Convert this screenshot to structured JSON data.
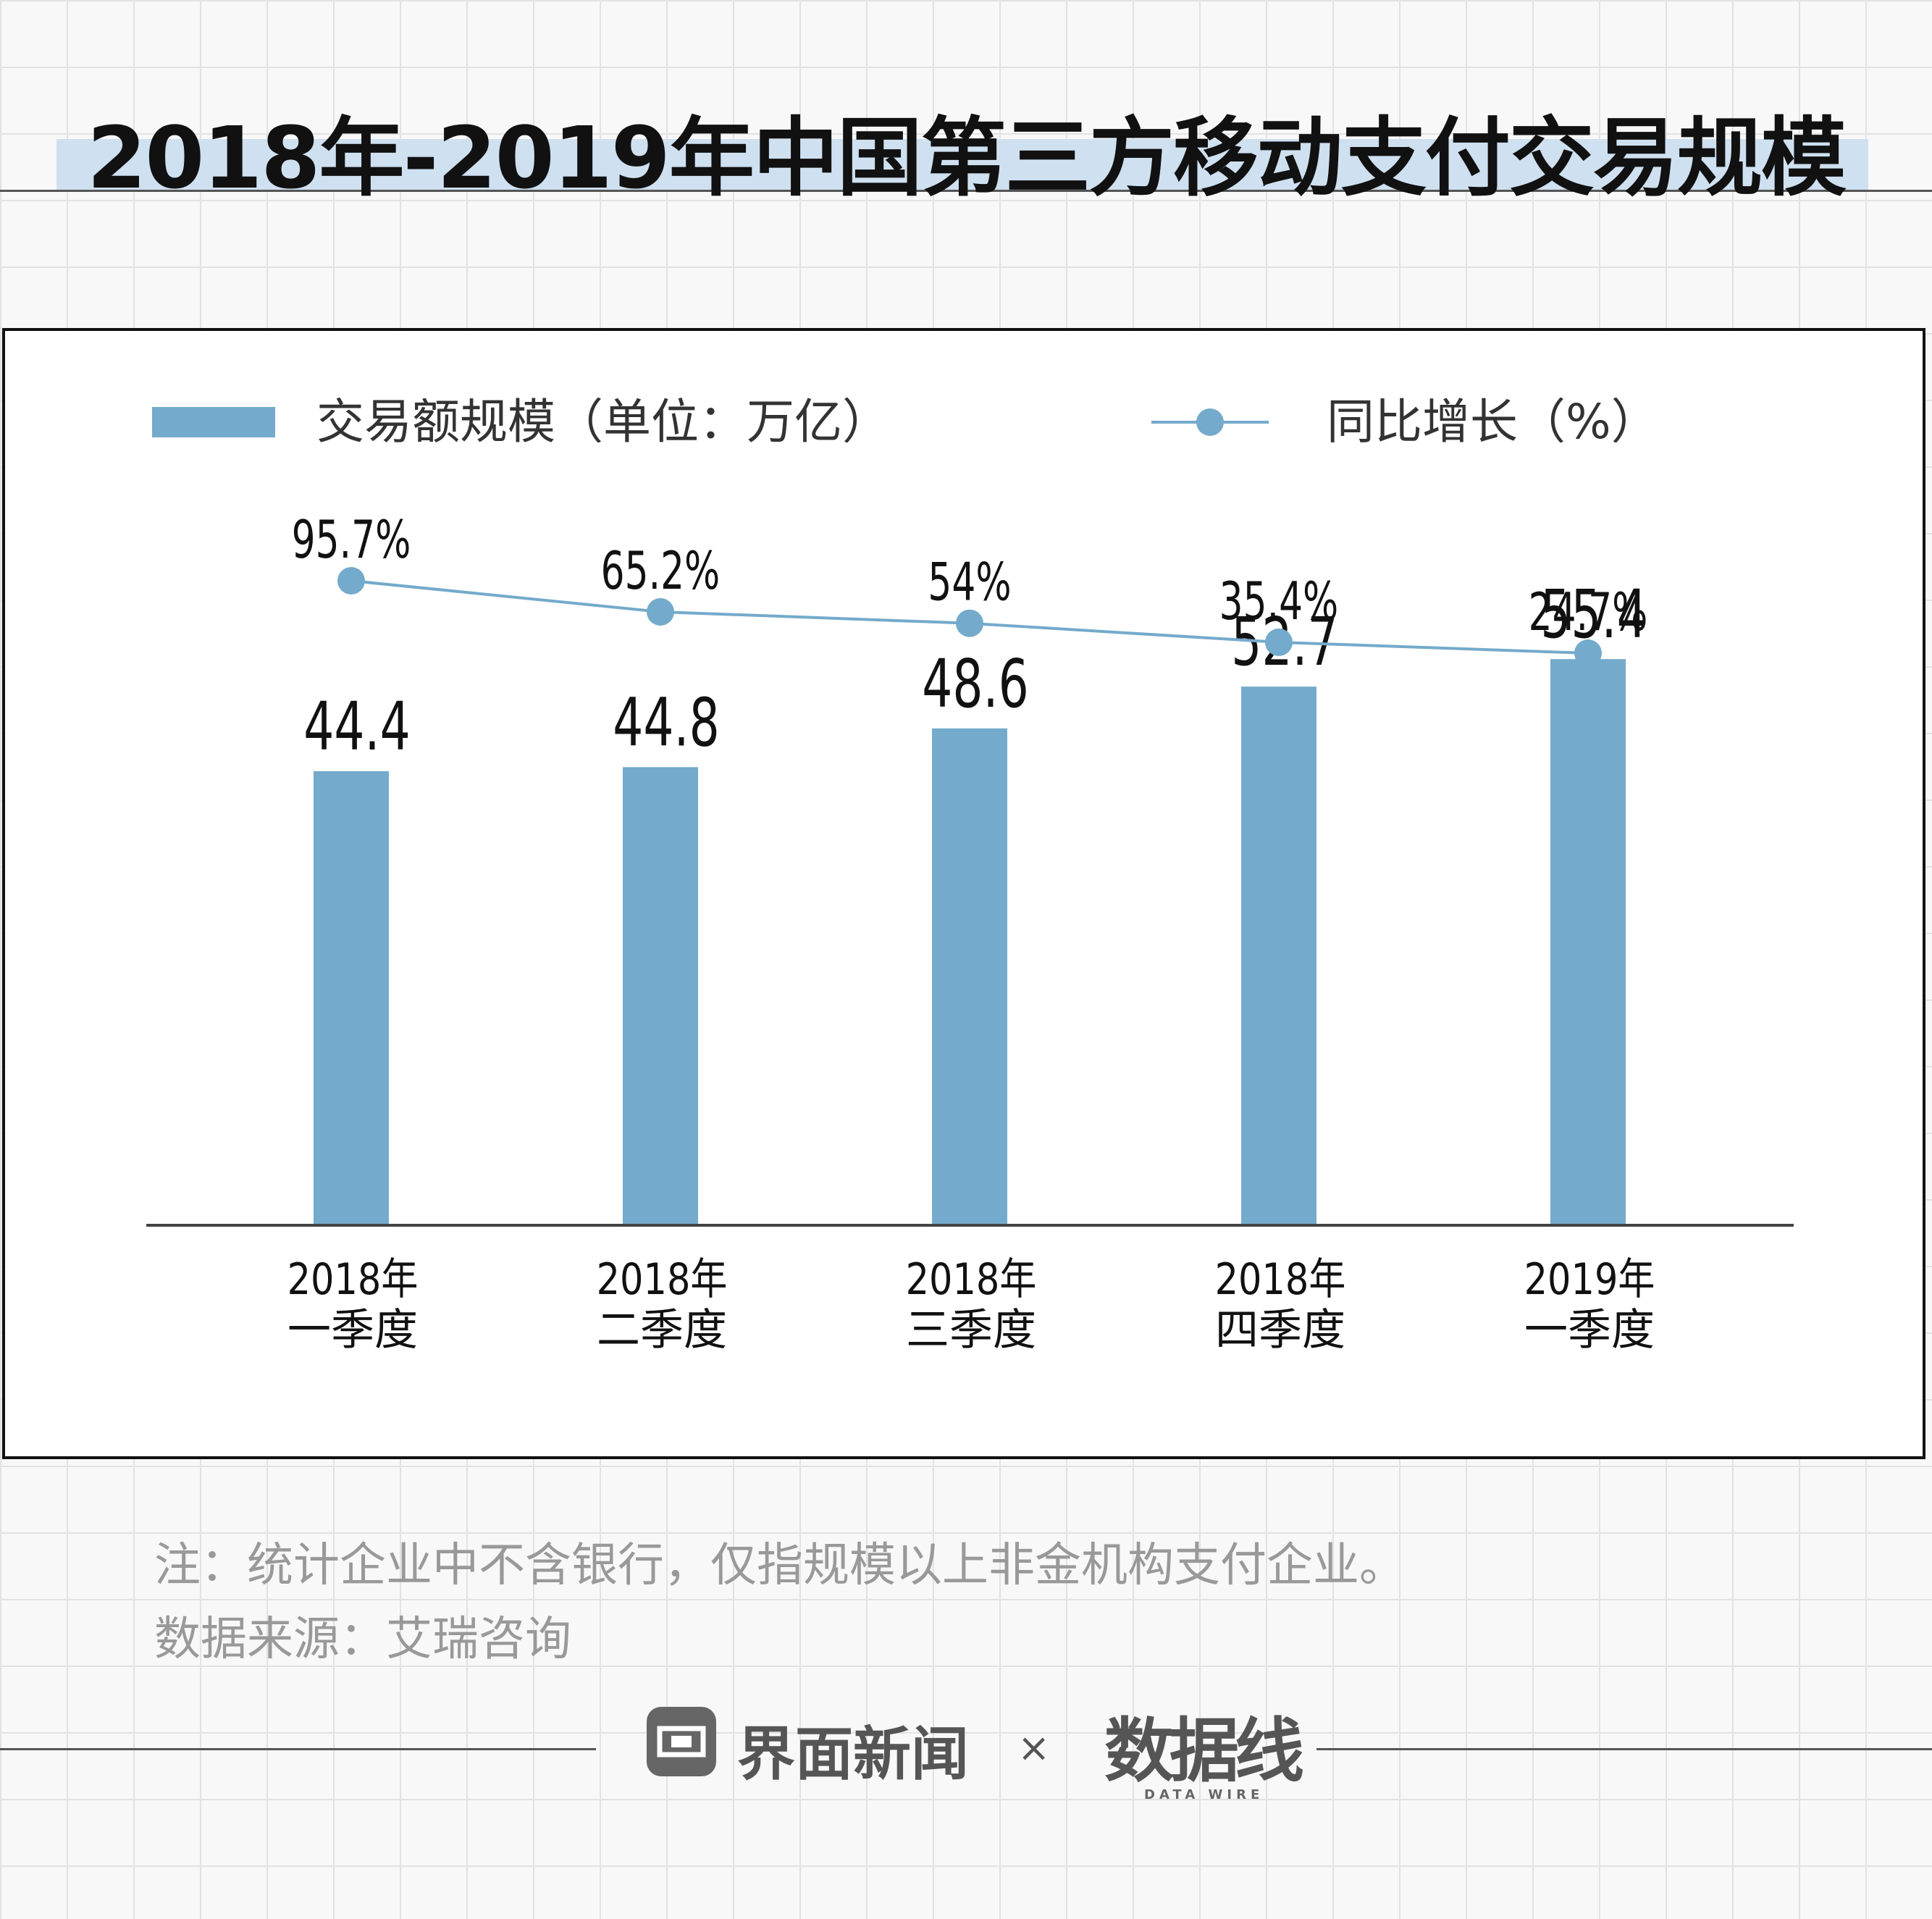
{
  "title": "2018年-2019年中国第三方移动支付交易规模",
  "legend": {
    "bar_label": "交易额规模（单位：万亿）",
    "line_label": "同比增长（%）"
  },
  "colors": {
    "bar": "#74aacb",
    "line": "#74aacb",
    "title_band": "#cfe0f0"
  },
  "chart_data": {
    "type": "bar",
    "title": "2018年-2019年中国第三方移动支付交易规模",
    "categories": [
      [
        "2018年",
        "一季度"
      ],
      [
        "2018年",
        "二季度"
      ],
      [
        "2018年",
        "三季度"
      ],
      [
        "2018年",
        "四季度"
      ],
      [
        "2019年",
        "一季度"
      ]
    ],
    "series": [
      {
        "name": "交易额规模（单位：万亿）",
        "kind": "bar",
        "values": [
          44.4,
          44.8,
          48.6,
          52.7,
          55.4
        ],
        "labels": [
          "44.4",
          "44.8",
          "48.6",
          "52.7",
          "55.4"
        ]
      },
      {
        "name": "同比增长（%）",
        "kind": "line",
        "values": [
          95.7,
          65.2,
          54,
          35.4,
          24.7
        ],
        "labels": [
          "95.7%",
          "65.2%",
          "54%",
          "35.4%",
          "24.7%"
        ]
      }
    ],
    "xlabel": "",
    "ylabel": "",
    "ylim": [
      0,
      65
    ],
    "grid": false,
    "legend_position": "top"
  },
  "notes": {
    "note": "注：统计企业中不含银行，仅指规模以上非金机构支付企业。",
    "source": "数据来源：艾瑞咨询"
  },
  "footer": {
    "brand": "界面新闻",
    "separator": "×",
    "partner": "数据线",
    "partner_sub": "DATA WIRE"
  },
  "watermark": "数据线"
}
